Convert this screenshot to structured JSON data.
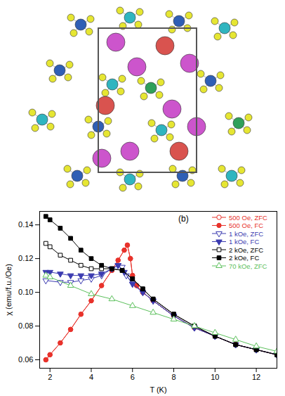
{
  "chart_data": {
    "type": "line",
    "x_label": "T (K)",
    "y_label": "χ (emu/f.u./Oe)",
    "annotations": [
      "(b)"
    ],
    "xlim": [
      1.5,
      13
    ],
    "ylim": [
      0.055,
      0.148
    ],
    "xticks": [
      2,
      4,
      6,
      8,
      10,
      12
    ],
    "yticks": [
      0.06,
      0.08,
      {
        "value": 0.1,
        "label": "0.10"
      },
      0.12,
      0.14
    ],
    "legend": "top-right",
    "series": [
      {
        "name": "500 Oe, ZFC",
        "color": "#e8322b",
        "marker": "open-circle",
        "x": [
          1.8,
          2.0,
          2.5,
          3.0,
          3.5,
          4.0,
          4.5,
          5.0,
          5.3,
          5.6,
          5.75,
          5.9,
          6.0,
          6.2,
          6.5,
          7.0,
          8.0,
          9.0,
          10.0,
          11.0,
          12.0,
          13.0
        ],
        "values": [
          0.06,
          0.063,
          0.07,
          0.078,
          0.087,
          0.095,
          0.104,
          0.113,
          0.119,
          0.125,
          0.128,
          0.12,
          0.11,
          0.104,
          0.1,
          0.095,
          0.086,
          0.079,
          0.074,
          0.069,
          0.066,
          0.063
        ]
      },
      {
        "name": "500 Oe, FC",
        "color": "#e8322b",
        "marker": "filled-circle",
        "x": [
          1.8,
          2.0,
          2.5,
          3.0,
          3.5,
          4.0,
          4.5,
          5.0,
          5.3,
          5.6,
          5.75,
          5.9,
          6.0,
          6.2,
          6.5,
          7.0,
          8.0,
          9.0,
          10.0,
          11.0,
          12.0,
          13.0
        ],
        "values": [
          0.06,
          0.063,
          0.07,
          0.078,
          0.087,
          0.095,
          0.104,
          0.113,
          0.119,
          0.125,
          0.128,
          0.12,
          0.11,
          0.104,
          0.1,
          0.095,
          0.086,
          0.079,
          0.074,
          0.069,
          0.066,
          0.063
        ]
      },
      {
        "name": "1 kOe, ZFC",
        "color": "#3b3bb0",
        "marker": "open-triangle-down",
        "x": [
          1.8,
          2.5,
          3.0,
          3.5,
          4.0,
          4.5,
          5.0,
          5.3,
          5.5,
          5.7,
          6.0,
          6.5,
          7.0,
          8.0,
          9.0,
          10.0,
          11.0,
          12.0,
          13.0
        ],
        "values": [
          0.107,
          0.106,
          0.106,
          0.107,
          0.108,
          0.11,
          0.114,
          0.116,
          0.115,
          0.11,
          0.105,
          0.1,
          0.095,
          0.086,
          0.079,
          0.074,
          0.069,
          0.066,
          0.063
        ]
      },
      {
        "name": "1 kOe, FC",
        "color": "#3b3bb0",
        "marker": "filled-triangle-down",
        "x": [
          1.8,
          2.0,
          2.5,
          3.0,
          3.5,
          4.0,
          4.5,
          5.0,
          5.3,
          5.6,
          6.0,
          6.5,
          7.0,
          8.0,
          9.0,
          10.0,
          11.0,
          12.0,
          13.0
        ],
        "values": [
          0.112,
          0.112,
          0.111,
          0.11,
          0.11,
          0.11,
          0.111,
          0.114,
          0.116,
          0.112,
          0.105,
          0.1,
          0.095,
          0.086,
          0.079,
          0.074,
          0.069,
          0.066,
          0.063
        ]
      },
      {
        "name": "2 kOe, ZFC",
        "color": "#000000",
        "marker": "open-square",
        "x": [
          1.8,
          2.0,
          2.5,
          3.0,
          3.5,
          4.0,
          4.5,
          5.0,
          5.5,
          6.0,
          6.5,
          7.0,
          8.0,
          9.0,
          10.0,
          11.0,
          12.0,
          13.0
        ],
        "values": [
          0.129,
          0.127,
          0.122,
          0.119,
          0.116,
          0.114,
          0.114,
          0.114,
          0.113,
          0.108,
          0.102,
          0.096,
          0.087,
          0.08,
          0.074,
          0.069,
          0.066,
          0.063
        ]
      },
      {
        "name": "2 kOe, FC",
        "color": "#000000",
        "marker": "filled-square",
        "x": [
          1.8,
          2.0,
          2.5,
          3.0,
          3.5,
          4.0,
          4.5,
          5.0,
          5.5,
          6.0,
          6.5,
          7.0,
          8.0,
          9.0,
          10.0,
          11.0,
          12.0,
          13.0
        ],
        "values": [
          0.145,
          0.143,
          0.138,
          0.132,
          0.125,
          0.12,
          0.116,
          0.114,
          0.113,
          0.108,
          0.102,
          0.096,
          0.087,
          0.08,
          0.074,
          0.069,
          0.066,
          0.063
        ]
      },
      {
        "name": "70 kOe, ZFC",
        "color": "#5cc05c",
        "marker": "open-triangle-up",
        "x": [
          1.8,
          2.0,
          3.0,
          4.0,
          5.0,
          6.0,
          7.0,
          8.0,
          9.0,
          10.0,
          11.0,
          12.0,
          13.0
        ],
        "values": [
          0.11,
          0.109,
          0.104,
          0.099,
          0.096,
          0.092,
          0.088,
          0.084,
          0.08,
          0.076,
          0.072,
          0.068,
          0.065
        ]
      }
    ]
  }
}
